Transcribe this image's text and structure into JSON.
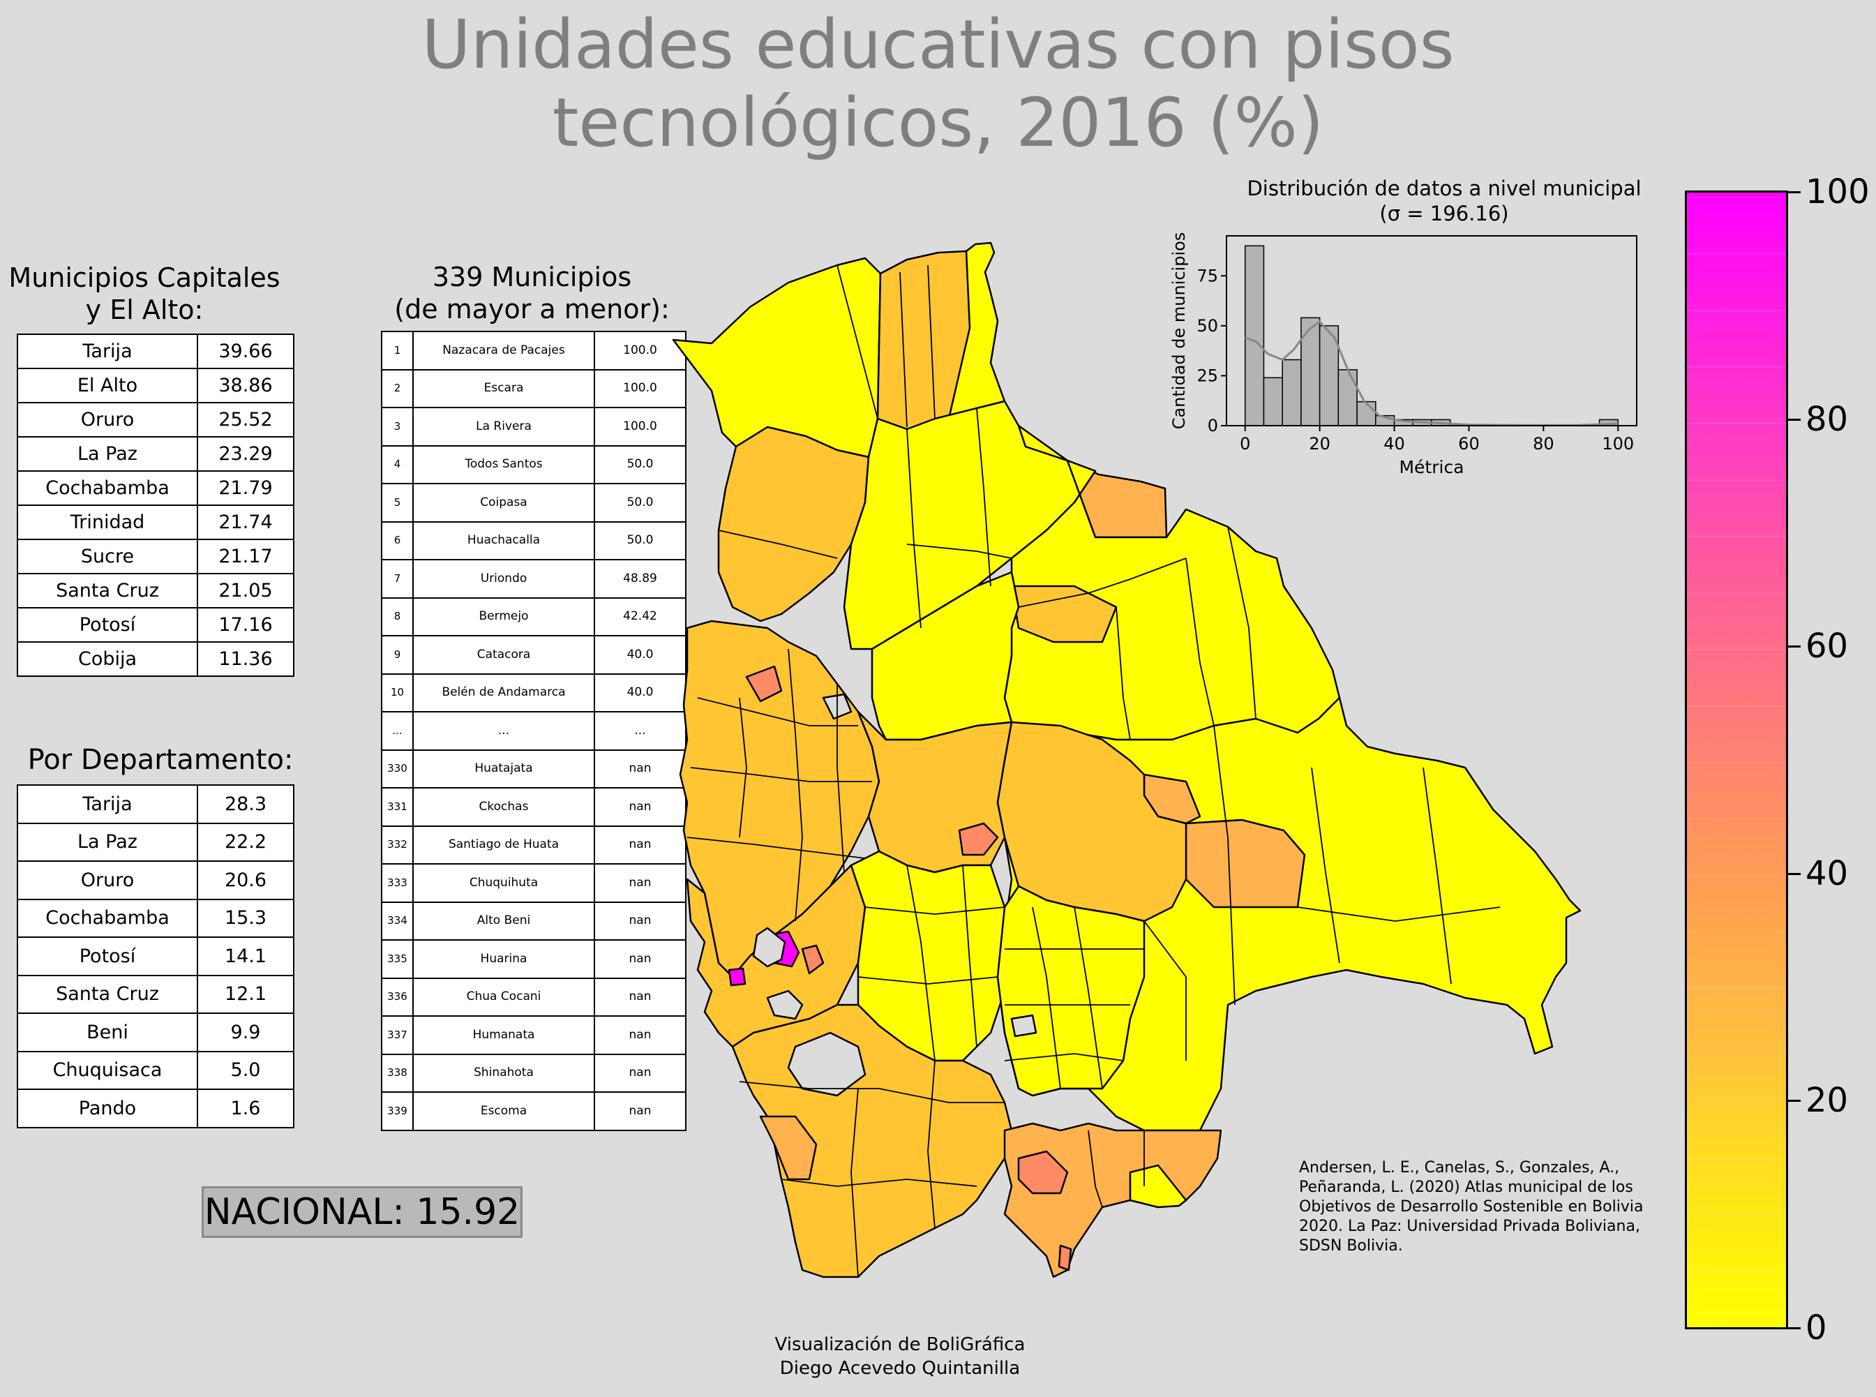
{
  "title_line1": "Unidades educativas con pisos",
  "title_line2": "tecnológicos, 2016 (%)",
  "capitales": {
    "heading_line1": "Municipios Capitales",
    "heading_line2": "y El Alto:",
    "rows": [
      [
        "Tarija",
        "39.66"
      ],
      [
        "El Alto",
        "38.86"
      ],
      [
        "Oruro",
        "25.52"
      ],
      [
        "La Paz",
        "23.29"
      ],
      [
        "Cochabamba",
        "21.79"
      ],
      [
        "Trinidad",
        "21.74"
      ],
      [
        "Sucre",
        "21.17"
      ],
      [
        "Santa Cruz",
        "21.05"
      ],
      [
        "Potosí",
        "17.16"
      ],
      [
        "Cobija",
        "11.36"
      ]
    ]
  },
  "departamentos": {
    "heading": "Por Departamento:",
    "rows": [
      [
        "Tarija",
        "28.3"
      ],
      [
        "La Paz",
        "22.2"
      ],
      [
        "Oruro",
        "20.6"
      ],
      [
        "Cochabamba",
        "15.3"
      ],
      [
        "Potosí",
        "14.1"
      ],
      [
        "Santa Cruz",
        "12.1"
      ],
      [
        "Beni",
        "9.9"
      ],
      [
        "Chuquisaca",
        "5.0"
      ],
      [
        "Pando",
        "1.6"
      ]
    ]
  },
  "municipios": {
    "heading_line1": "339 Municipios",
    "heading_line2": "(de mayor a menor):",
    "rows": [
      [
        "1",
        "Nazacara de Pacajes",
        "100.0"
      ],
      [
        "2",
        "Escara",
        "100.0"
      ],
      [
        "3",
        "La Rivera",
        "100.0"
      ],
      [
        "4",
        "Todos Santos",
        "50.0"
      ],
      [
        "5",
        "Coipasa",
        "50.0"
      ],
      [
        "6",
        "Huachacalla",
        "50.0"
      ],
      [
        "7",
        "Uriondo",
        "48.89"
      ],
      [
        "8",
        "Bermejo",
        "42.42"
      ],
      [
        "9",
        "Catacora",
        "40.0"
      ],
      [
        "10",
        "Belén de Andamarca",
        "40.0"
      ],
      [
        "...",
        "...",
        "..."
      ],
      [
        "330",
        "Huatajata",
        "nan"
      ],
      [
        "331",
        "Ckochas",
        "nan"
      ],
      [
        "332",
        "Santiago de Huata",
        "nan"
      ],
      [
        "333",
        "Chuquihuta",
        "nan"
      ],
      [
        "334",
        "Alto Beni",
        "nan"
      ],
      [
        "335",
        "Huarina",
        "nan"
      ],
      [
        "336",
        "Chua Cocani",
        "nan"
      ],
      [
        "337",
        "Humanata",
        "nan"
      ],
      [
        "338",
        "Shinahota",
        "nan"
      ],
      [
        "339",
        "Escoma",
        "nan"
      ]
    ]
  },
  "nacional": "NACIONAL: 15.92",
  "chart_data": {
    "type": "bar",
    "title": "Distribución de datos a nivel municipal",
    "subtitle": "(σ = 196.16)",
    "xlabel": "Métrica",
    "ylabel": "Cantidad de municipios",
    "xlim": [
      -5,
      105
    ],
    "ylim": [
      0,
      95
    ],
    "xticks": [
      0,
      20,
      40,
      60,
      80,
      100
    ],
    "yticks": [
      0,
      25,
      50,
      75
    ],
    "bin_edges": [
      0,
      5,
      10,
      15,
      20,
      25,
      30,
      35,
      40,
      45,
      50,
      55,
      60,
      65,
      70,
      75,
      80,
      85,
      90,
      95,
      100
    ],
    "counts": [
      90,
      24,
      33,
      54,
      50,
      28,
      12,
      5,
      3,
      3,
      3,
      0,
      0,
      0,
      0,
      0,
      0,
      0,
      0,
      3
    ],
    "kde_x": [
      0,
      3,
      6,
      10,
      13,
      17,
      20,
      24,
      28,
      32,
      36,
      40,
      44,
      50,
      60,
      70,
      80,
      90,
      100
    ],
    "kde_y": [
      44,
      42,
      36,
      33,
      38,
      48,
      52,
      44,
      26,
      12,
      5,
      3,
      2,
      1.5,
      0.5,
      0.3,
      0.2,
      0.3,
      1
    ],
    "bar_color": "#b3b3b3",
    "kde_color": "#888888"
  },
  "colorbar": {
    "ticks": [
      "0",
      "20",
      "40",
      "60",
      "80",
      "100"
    ],
    "colors": [
      "#ffff00",
      "#ffc040",
      "#ff8470",
      "#ff38c8",
      "#ff00ff"
    ]
  },
  "map_colors": {
    "low": "#ffff00",
    "mid": "#ffc533",
    "orange": "#ffa84d",
    "salmon": "#ff8a66",
    "magenta": "#ff00ff",
    "lake": "#dcdcdc"
  },
  "citation": "Andersen, L. E., Canelas, S., Gonzales, A., Peñaranda, L. (2020) Atlas municipal de los Objetivos de Desarrollo Sostenible en Bolivia 2020. La Paz: Universidad Privada Boliviana, SDSN Bolivia.",
  "credit_line1": "Visualización de BoliGráfica",
  "credit_line2": "Diego Acevedo Quintanilla"
}
